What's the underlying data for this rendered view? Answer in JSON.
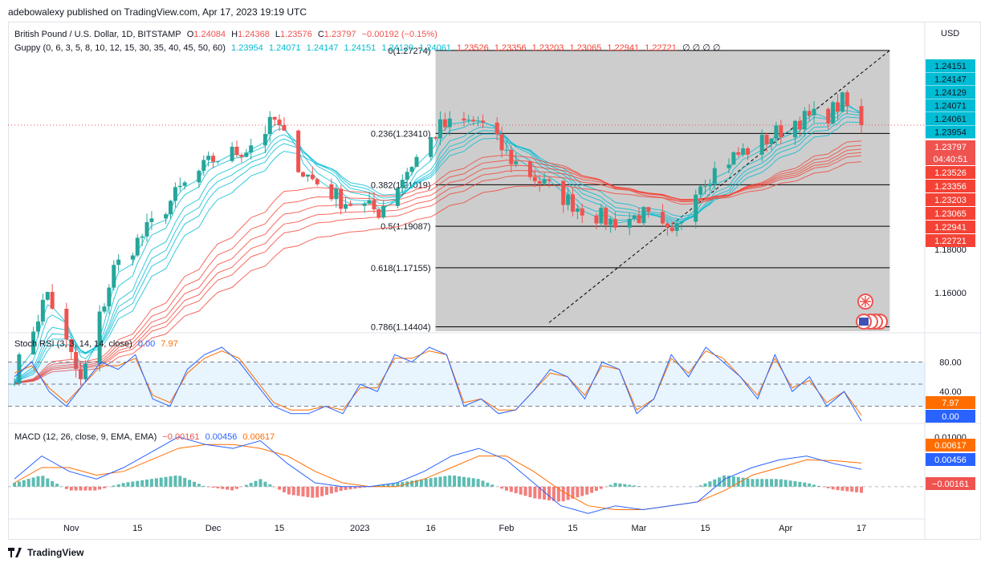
{
  "header": "adebowalexy published on TradingView.com, Apr 17, 2023 19:19 UTC",
  "footer": {
    "brand": "TradingView",
    "logo_icon": "tradingview-logo-icon"
  },
  "currency_label": "USD",
  "legend": {
    "symbol": "British Pound / U.S. Dollar, 1D, BITSTAMP",
    "o_label": "O",
    "o": "1.24084",
    "h_label": "H",
    "h": "1.24368",
    "l_label": "L",
    "l": "1.23576",
    "c_label": "C",
    "c": "1.23797",
    "chg": "−0.00192 (−0.15%)",
    "guppy_label": "Guppy (0, 6, 3, 5, 8, 10, 12, 15, 30, 35, 40, 45, 50, 60)",
    "guppy_fast": [
      "1.23954",
      "1.24071",
      "1.24147",
      "1.24151",
      "1.24129",
      "1.24061"
    ],
    "guppy_slow": [
      "1.23526",
      "1.23356",
      "1.23203",
      "1.23065",
      "1.22941",
      "1.22721"
    ],
    "guppy_tail": "∅ ∅ ∅ ∅"
  },
  "stoch_legend": {
    "label": "Stoch RSI (3, 3, 14, 14, close)",
    "k": "0.00",
    "d": "7.97"
  },
  "macd_legend": {
    "label": "MACD (12, 26, close, 9, EMA, EMA)",
    "hist": "−0.00161",
    "macd": "0.00456",
    "signal": "0.00617"
  },
  "price_axis": {
    "ticks": [
      "1.18000",
      "1.16000"
    ],
    "fast_tags": [
      "1.24151",
      "1.24147",
      "1.24129",
      "1.24071",
      "1.24061",
      "1.23954"
    ],
    "current": "1.23797",
    "countdown": "04:40:51",
    "slow_tags": [
      "1.23526",
      "1.23356",
      "1.23203",
      "1.23065",
      "1.22941",
      "1.22721"
    ]
  },
  "stoch_axis": {
    "ticks": [
      "80.00",
      "40.00"
    ],
    "d_tag": "7.97",
    "k_tag": "0.00"
  },
  "macd_axis": {
    "ticks": [
      "0.01000"
    ],
    "signal_tag": "0.00617",
    "macd_tag": "0.00456",
    "hist_tag": "−0.00161"
  },
  "time_axis": [
    "Nov",
    "15",
    "Dec",
    "15",
    "2023",
    "16",
    "Feb",
    "15",
    "Mar",
    "15",
    "Apr",
    "17"
  ],
  "fib_levels": [
    {
      "label": "0(1.27274)",
      "price": 1.27274
    },
    {
      "label": "0.236(1.23410)",
      "price": 1.2341
    },
    {
      "label": "0.382(1.21019)",
      "price": 1.21019
    },
    {
      "label": "0.5(1.19087)",
      "price": 1.19087
    },
    {
      "label": "0.618(1.17155)",
      "price": 1.17155
    },
    {
      "label": "0.786(1.14404)",
      "price": 1.14404
    }
  ],
  "colors": {
    "up": "#26a69a",
    "down": "#ef5350",
    "fast": "#00bcd4",
    "slow": "#f44336",
    "k": "#2962ff",
    "d": "#ff6d00",
    "fib_box": "#c8c8c8"
  },
  "chart_data": {
    "type": "candlestick",
    "symbol": "GBPUSD",
    "timeframe": "1D",
    "x_range": [
      "2022-10-20",
      "2023-04-17"
    ],
    "ylim": [
      1.142,
      1.285
    ],
    "last_close": 1.23797,
    "close_path": [
      [
        "2022-10-20",
        1.122
      ],
      [
        "2022-10-27",
        1.16
      ],
      [
        "2022-11-03",
        1.118
      ],
      [
        "2022-11-10",
        1.171
      ],
      [
        "2022-11-17",
        1.189
      ],
      [
        "2022-11-24",
        1.208
      ],
      [
        "2022-12-01",
        1.222
      ],
      [
        "2022-12-08",
        1.227
      ],
      [
        "2022-12-14",
        1.24
      ],
      [
        "2022-12-20",
        1.216
      ],
      [
        "2022-12-28",
        1.203
      ],
      [
        "2023-01-05",
        1.198
      ],
      [
        "2023-01-12",
        1.22
      ],
      [
        "2023-01-18",
        1.237
      ],
      [
        "2023-01-26",
        1.24
      ],
      [
        "2023-02-02",
        1.222
      ],
      [
        "2023-02-09",
        1.21
      ],
      [
        "2023-02-16",
        1.2
      ],
      [
        "2023-02-23",
        1.193
      ],
      [
        "2023-03-02",
        1.196
      ],
      [
        "2023-03-08",
        1.185
      ],
      [
        "2023-03-13",
        1.21
      ],
      [
        "2023-03-20",
        1.222
      ],
      [
        "2023-03-27",
        1.23
      ],
      [
        "2023-04-03",
        1.24
      ],
      [
        "2023-04-10",
        1.243
      ],
      [
        "2023-04-13",
        1.249
      ],
      [
        "2023-04-17",
        1.238
      ]
    ],
    "stoch_rsi": {
      "ylim": [
        0,
        100
      ],
      "k": [
        60,
        80,
        40,
        20,
        50,
        80,
        70,
        90,
        30,
        20,
        70,
        90,
        100,
        80,
        50,
        20,
        10,
        10,
        20,
        10,
        50,
        40,
        90,
        80,
        100,
        90,
        20,
        30,
        10,
        15,
        40,
        70,
        60,
        30,
        80,
        70,
        10,
        30,
        90,
        60,
        100,
        80,
        60,
        30,
        90,
        40,
        60,
        20,
        40,
        0
      ],
      "d": [
        65,
        75,
        45,
        25,
        50,
        75,
        75,
        85,
        35,
        25,
        65,
        85,
        95,
        85,
        55,
        25,
        15,
        15,
        20,
        15,
        45,
        45,
        85,
        85,
        95,
        90,
        25,
        30,
        15,
        15,
        40,
        65,
        60,
        35,
        75,
        70,
        15,
        30,
        85,
        65,
        95,
        85,
        60,
        35,
        85,
        45,
        55,
        25,
        40,
        7.97
      ]
    },
    "macd": {
      "ylim": [
        -0.008,
        0.014
      ],
      "macd": [
        0.002,
        0.008,
        0.004,
        0.002,
        0.005,
        0.009,
        0.013,
        0.011,
        0.01,
        0.012,
        0.006,
        0.001,
        0.0,
        0.0,
        0.001,
        0.004,
        0.008,
        0.01,
        0.007,
        0.001,
        -0.005,
        -0.007,
        -0.005,
        -0.006,
        -0.005,
        -0.004,
        0.002,
        0.005,
        0.007,
        0.008,
        0.006,
        0.00456
      ],
      "signal": [
        0.001,
        0.005,
        0.005,
        0.003,
        0.004,
        0.007,
        0.01,
        0.011,
        0.011,
        0.01,
        0.008,
        0.004,
        0.001,
        0.0,
        0.0,
        0.002,
        0.005,
        0.008,
        0.008,
        0.004,
        -0.001,
        -0.005,
        -0.006,
        -0.006,
        -0.005,
        -0.004,
        -0.001,
        0.003,
        0.005,
        0.007,
        0.0068,
        0.00617
      ],
      "histogram": [
        0.001,
        0.003,
        -0.001,
        -0.001,
        0.001,
        0.002,
        0.003,
        0.0,
        -0.001,
        0.002,
        -0.002,
        -0.003,
        -0.001,
        0.0,
        0.001,
        0.002,
        0.003,
        0.002,
        -0.001,
        -0.003,
        -0.004,
        -0.002,
        0.001,
        0.0,
        0.0,
        0.0,
        0.003,
        0.002,
        0.002,
        0.001,
        -0.0008,
        -0.00161
      ]
    }
  }
}
